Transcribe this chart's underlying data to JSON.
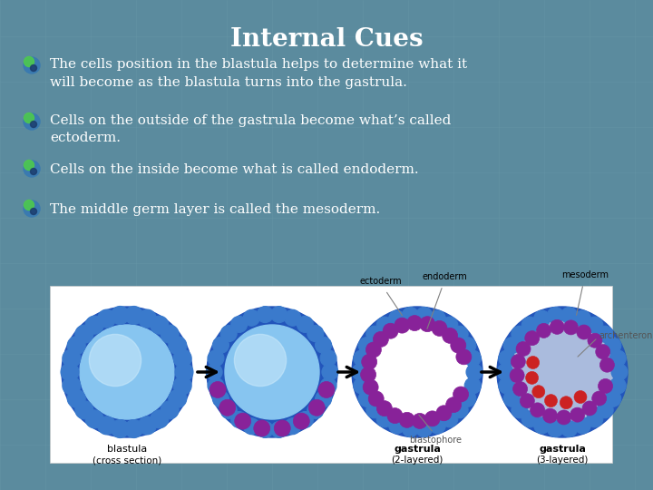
{
  "title": "Internal Cues",
  "title_fontsize": 20,
  "title_color": "white",
  "title_fontstyle": "bold",
  "title_fontfamily": "serif",
  "bg_color": "#5b8b9e",
  "grid_color": "#6a9aaa",
  "bullet_points": [
    "The cells position in the blastula helps to determine what it\nwill become as the blastula turns into the gastrula.",
    "Cells on the outside of the gastrula become what’s called\nectoderm.",
    "Cells on the inside become what is called endoderm.",
    "The middle germ layer is called the mesoderm."
  ],
  "bullet_fontsize": 11,
  "bullet_color": "white",
  "bullet_fontfamily": "serif",
  "image_bg": "white",
  "cell_blue_outer": "#2255bb",
  "cell_blue_inner": "#3a80d0",
  "cell_light_blue": "#87c5f0",
  "cell_lighter_blue": "#c0e0f8",
  "cell_purple": "#882299",
  "cell_red": "#cc2222",
  "arrow_color": "black"
}
